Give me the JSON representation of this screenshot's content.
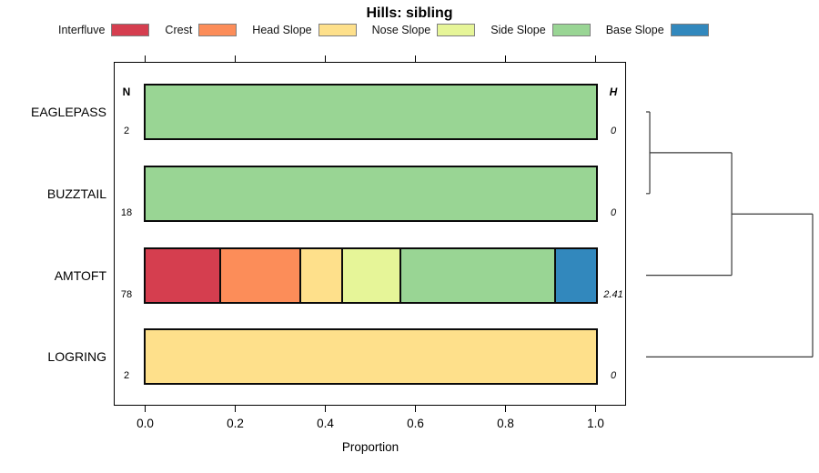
{
  "header": {
    "title": "Hills: sibling"
  },
  "legend": {
    "items": [
      {
        "label": "Interfluve",
        "color": "#d53e4f"
      },
      {
        "label": "Crest",
        "color": "#fc8d59"
      },
      {
        "label": "Head Slope",
        "color": "#fee08b"
      },
      {
        "label": "Nose Slope",
        "color": "#e6f598"
      },
      {
        "label": "Side Slope",
        "color": "#99d594"
      },
      {
        "label": "Base Slope",
        "color": "#3288bd"
      }
    ]
  },
  "axis": {
    "xlabel": "Proportion",
    "ticks": [
      "0.0",
      "0.2",
      "0.4",
      "0.6",
      "0.8",
      "1.0"
    ]
  },
  "stats_headers": {
    "n": "N",
    "h": "H"
  },
  "chart_data": {
    "type": "bar",
    "orientation": "horizontal",
    "stacked": true,
    "title": "Hills: sibling",
    "xlabel": "Proportion",
    "xlim": [
      0,
      1
    ],
    "grid": false,
    "legend_position": "top",
    "categories": [
      "Interfluve",
      "Crest",
      "Head Slope",
      "Nose Slope",
      "Side Slope",
      "Base Slope"
    ],
    "colors": [
      "#d53e4f",
      "#fc8d59",
      "#fee08b",
      "#e6f598",
      "#99d594",
      "#3288bd"
    ],
    "rows": [
      {
        "name": "EAGLEPASS",
        "n": "2",
        "h": "0",
        "values": [
          0,
          0,
          0,
          0,
          1,
          0
        ]
      },
      {
        "name": "BUZZTAIL",
        "n": "18",
        "h": "0",
        "values": [
          0,
          0,
          0,
          0,
          1,
          0
        ]
      },
      {
        "name": "AMTOFT",
        "n": "78",
        "h": "2.41",
        "values": [
          0.167,
          0.179,
          0.09,
          0.128,
          0.346,
          0.09
        ]
      },
      {
        "name": "LOGRING",
        "n": "2",
        "h": "0",
        "values": [
          0,
          0,
          1,
          0,
          0,
          0
        ]
      }
    ],
    "dendrogram": {
      "order": [
        "EAGLEPASS",
        "BUZZTAIL",
        "AMTOFT",
        "LOGRING"
      ],
      "merges": [
        {
          "children": [
            "EAGLEPASS",
            "BUZZTAIL"
          ],
          "height": 0.022
        },
        {
          "children": [
            "merge0",
            "AMTOFT"
          ],
          "height": 0.514
        },
        {
          "children": [
            "merge1",
            "LOGRING"
          ],
          "height": 1.0
        }
      ]
    }
  }
}
